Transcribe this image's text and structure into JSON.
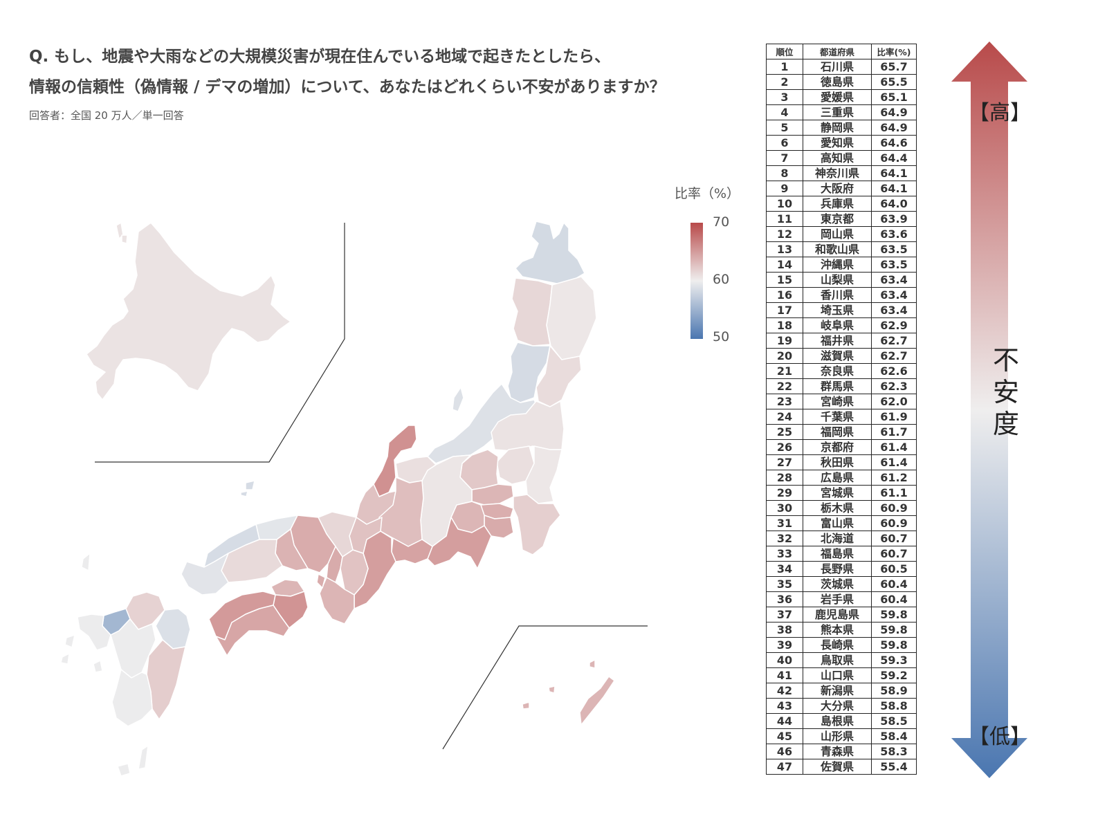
{
  "question": {
    "line1": "Q. もし、地震や大雨などの大規模災害が現在住んでいる地域で起きたとしたら、",
    "line2": "情報の信頼性（偽情報 / デマの増加）について、あなたはどれくらい不安がありますか？",
    "respondents": "回答者：全国 20 万人／単一回答"
  },
  "legend": {
    "title": "比率（%）",
    "max_label": "70",
    "mid_label": "60",
    "min_label": "50",
    "max": 70,
    "mid": 60,
    "min": 50
  },
  "colors": {
    "high": "#b84a4a",
    "mid": "#efeeee",
    "low": "#4a76b0",
    "border": "#ffffff",
    "inset_line": "#333333"
  },
  "table": {
    "headers": [
      "順位",
      "都道府県",
      "比率(%)"
    ],
    "rows": [
      {
        "rank": "1",
        "pref": "石川県",
        "rate": "65.7"
      },
      {
        "rank": "2",
        "pref": "徳島県",
        "rate": "65.5"
      },
      {
        "rank": "3",
        "pref": "愛媛県",
        "rate": "65.1"
      },
      {
        "rank": "4",
        "pref": "三重県",
        "rate": "64.9"
      },
      {
        "rank": "5",
        "pref": "静岡県",
        "rate": "64.9"
      },
      {
        "rank": "6",
        "pref": "愛知県",
        "rate": "64.6"
      },
      {
        "rank": "7",
        "pref": "高知県",
        "rate": "64.4"
      },
      {
        "rank": "8",
        "pref": "神奈川県",
        "rate": "64.1"
      },
      {
        "rank": "9",
        "pref": "大阪府",
        "rate": "64.1"
      },
      {
        "rank": "10",
        "pref": "兵庫県",
        "rate": "64.0"
      },
      {
        "rank": "11",
        "pref": "東京都",
        "rate": "63.9"
      },
      {
        "rank": "12",
        "pref": "岡山県",
        "rate": "63.6"
      },
      {
        "rank": "13",
        "pref": "和歌山県",
        "rate": "63.5"
      },
      {
        "rank": "14",
        "pref": "沖縄県",
        "rate": "63.5"
      },
      {
        "rank": "15",
        "pref": "山梨県",
        "rate": "63.4"
      },
      {
        "rank": "16",
        "pref": "香川県",
        "rate": "63.4"
      },
      {
        "rank": "17",
        "pref": "埼玉県",
        "rate": "63.4"
      },
      {
        "rank": "18",
        "pref": "岐阜県",
        "rate": "62.9"
      },
      {
        "rank": "19",
        "pref": "福井県",
        "rate": "62.7"
      },
      {
        "rank": "20",
        "pref": "滋賀県",
        "rate": "62.7"
      },
      {
        "rank": "21",
        "pref": "奈良県",
        "rate": "62.6"
      },
      {
        "rank": "22",
        "pref": "群馬県",
        "rate": "62.3"
      },
      {
        "rank": "23",
        "pref": "宮崎県",
        "rate": "62.0"
      },
      {
        "rank": "24",
        "pref": "千葉県",
        "rate": "61.9"
      },
      {
        "rank": "25",
        "pref": "福岡県",
        "rate": "61.7"
      },
      {
        "rank": "26",
        "pref": "京都府",
        "rate": "61.4"
      },
      {
        "rank": "27",
        "pref": "秋田県",
        "rate": "61.4"
      },
      {
        "rank": "28",
        "pref": "広島県",
        "rate": "61.2"
      },
      {
        "rank": "29",
        "pref": "宮城県",
        "rate": "61.1"
      },
      {
        "rank": "30",
        "pref": "栃木県",
        "rate": "60.9"
      },
      {
        "rank": "31",
        "pref": "富山県",
        "rate": "60.9"
      },
      {
        "rank": "32",
        "pref": "北海道",
        "rate": "60.7"
      },
      {
        "rank": "33",
        "pref": "福島県",
        "rate": "60.7"
      },
      {
        "rank": "34",
        "pref": "長野県",
        "rate": "60.5"
      },
      {
        "rank": "35",
        "pref": "茨城県",
        "rate": "60.4"
      },
      {
        "rank": "36",
        "pref": "岩手県",
        "rate": "60.4"
      },
      {
        "rank": "37",
        "pref": "鹿児島県",
        "rate": "59.8"
      },
      {
        "rank": "38",
        "pref": "熊本県",
        "rate": "59.8"
      },
      {
        "rank": "39",
        "pref": "長崎県",
        "rate": "59.8"
      },
      {
        "rank": "40",
        "pref": "鳥取県",
        "rate": "59.3"
      },
      {
        "rank": "41",
        "pref": "山口県",
        "rate": "59.2"
      },
      {
        "rank": "42",
        "pref": "新潟県",
        "rate": "58.9"
      },
      {
        "rank": "43",
        "pref": "大分県",
        "rate": "58.8"
      },
      {
        "rank": "44",
        "pref": "島根県",
        "rate": "58.5"
      },
      {
        "rank": "45",
        "pref": "山形県",
        "rate": "58.4"
      },
      {
        "rank": "46",
        "pref": "青森県",
        "rate": "58.3"
      },
      {
        "rank": "47",
        "pref": "佐賀県",
        "rate": "55.4"
      }
    ]
  },
  "scale": {
    "high_label": "【高】",
    "low_label": "【低】",
    "title": "不安度"
  }
}
